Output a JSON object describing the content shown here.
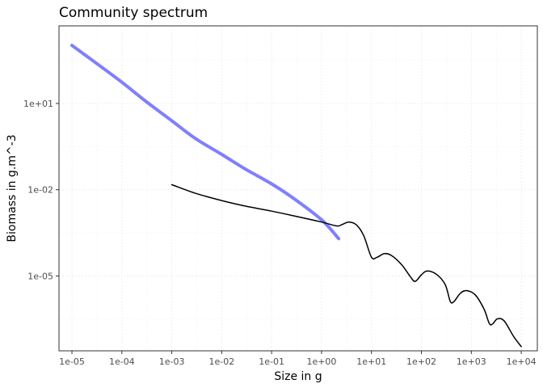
{
  "chart_data": {
    "type": "line",
    "title": "Community spectrum",
    "xlabel": "Size in g",
    "ylabel": "Biomass in g.m^-3",
    "x_scale": "log10",
    "y_scale": "log10",
    "xlim": [
      5.5e-06,
      21000
    ],
    "ylim": [
      2.5e-08,
      5000
    ],
    "x_ticks": [
      1e-05,
      0.0001,
      0.001,
      0.01,
      0.1,
      1,
      10,
      100,
      1000,
      10000
    ],
    "x_tick_labels": [
      "1e-05",
      "1e-04",
      "1e-03",
      "1e-02",
      "1e-01",
      "1e+00",
      "1e+01",
      "1e+02",
      "1e+03",
      "1e+04"
    ],
    "y_ticks": [
      1e-05,
      0.01,
      10
    ],
    "y_tick_labels": [
      "1e-05",
      "1e-02",
      "1e+01"
    ],
    "grid": true,
    "series": [
      {
        "color": "#7f7fff",
        "x": [
          1e-05,
          3e-05,
          0.0001,
          0.0003,
          0.001,
          0.003,
          0.01,
          0.03,
          0.1,
          0.3,
          1,
          2.2
        ],
        "y": [
          1050,
          260,
          55,
          12,
          2.5,
          0.6,
          0.17,
          0.052,
          0.016,
          0.0045,
          0.0009,
          0.0002
        ]
      },
      {
        "color": "#000000",
        "x": [
          0.001,
          0.003,
          0.01,
          0.03,
          0.1,
          0.3,
          1,
          2,
          2.5,
          3.5,
          5,
          7,
          10,
          13,
          18,
          25,
          40,
          60,
          75,
          100,
          130,
          200,
          300,
          380,
          450,
          600,
          800,
          1200,
          1800,
          2300,
          2700,
          3300,
          4500,
          7000,
          10000
        ],
        "y": [
          0.015,
          0.0075,
          0.0042,
          0.0027,
          0.0018,
          0.0012,
          0.00075,
          0.00055,
          0.0006,
          0.00075,
          0.0006,
          0.00025,
          4.5e-05,
          4.5e-05,
          6e-05,
          5.2e-05,
          2.5e-05,
          9.5e-06,
          6.5e-06,
          1.1e-05,
          1.5e-05,
          1.15e-05,
          5e-06,
          1.3e-06,
          1.3e-06,
          2.5e-06,
          3.1e-06,
          2.2e-06,
          7e-07,
          2.2e-07,
          2.2e-07,
          3.2e-07,
          2.8e-07,
          8e-08,
          3.5e-08
        ]
      }
    ]
  }
}
